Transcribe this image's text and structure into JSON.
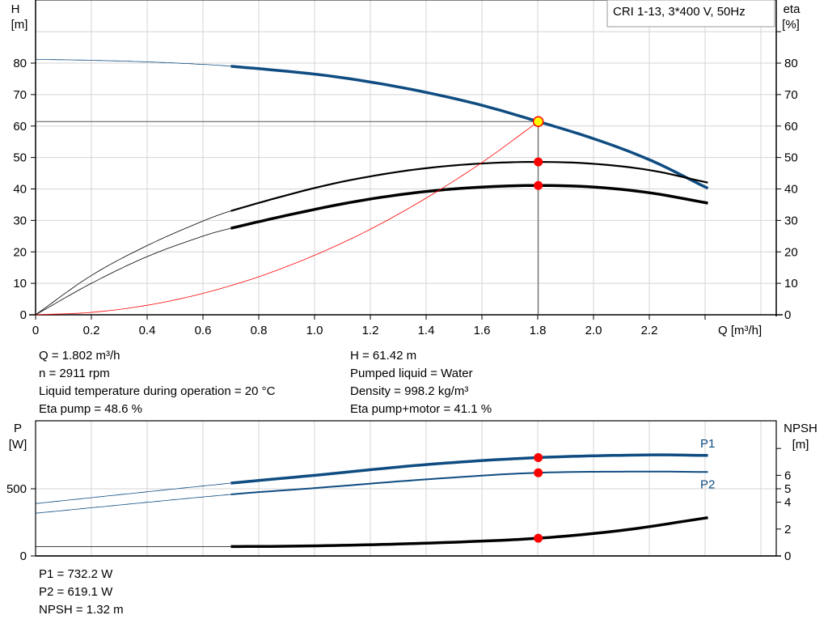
{
  "chart_data": [
    {
      "type": "line",
      "title": "CRI 1-13, 3*400 V, 50Hz",
      "xlabel": "Q [m³/h]",
      "ylabel_left": [
        "H",
        "[m]"
      ],
      "ylabel_right": [
        "eta",
        "[%]"
      ],
      "xlim": [
        0,
        2.6
      ],
      "ylim": [
        0,
        100
      ],
      "x_ticks": [
        "0",
        "0.2",
        "0.4",
        "0.6",
        "0.8",
        "1.0",
        "1.2",
        "1.4",
        "1.6",
        "1.8",
        "2.0",
        "2.2",
        ""
      ],
      "y_ticks": [
        "0",
        "10",
        "20",
        "30",
        "40",
        "50",
        "60",
        "70",
        "80"
      ],
      "grid": true,
      "series": [
        {
          "key": "head",
          "color": "#0f4c81",
          "x": [
            0,
            0.2,
            0.4,
            0.6,
            0.7,
            1.0,
            1.2,
            1.4,
            1.6,
            1.802,
            2.0,
            2.2,
            2.41
          ],
          "y": [
            81.2,
            80.9,
            80.4,
            79.6,
            79.0,
            76.5,
            74.0,
            70.7,
            66.6,
            61.42,
            56.0,
            49.3,
            40.2
          ]
        },
        {
          "key": "eta_pump",
          "color": "#000000",
          "x": [
            0,
            0.2,
            0.4,
            0.6,
            0.7,
            1.0,
            1.2,
            1.4,
            1.6,
            1.802,
            2.0,
            2.2,
            2.41
          ],
          "y": [
            0,
            12.5,
            22,
            29.8,
            33,
            40.3,
            44,
            46.6,
            48.1,
            48.6,
            48.0,
            46.0,
            42.0
          ]
        },
        {
          "key": "eta_pump_motor",
          "color": "#000000",
          "x": [
            0,
            0.2,
            0.4,
            0.6,
            0.7,
            1.0,
            1.2,
            1.4,
            1.6,
            1.802,
            2.0,
            2.2,
            2.41
          ],
          "y": [
            0,
            10,
            18.5,
            25,
            27.5,
            33.5,
            36.8,
            39.2,
            40.6,
            41.1,
            40.6,
            38.8,
            35.5
          ]
        },
        {
          "key": "system",
          "color": "#ff0000",
          "x": [
            0,
            0.2,
            0.4,
            0.6,
            0.8,
            1.0,
            1.2,
            1.4,
            1.6,
            1.802
          ],
          "y": [
            0,
            0.76,
            3.03,
            6.81,
            12.1,
            18.9,
            27.2,
            37.1,
            48.4,
            61.42
          ]
        }
      ],
      "operating_point": {
        "q": 1.802,
        "h": 61.42,
        "eta_pump": 48.6,
        "eta_pump_motor": 41.1
      }
    },
    {
      "type": "line",
      "ylabel_left": [
        "P",
        "[W]"
      ],
      "ylabel_right": [
        "NPSH",
        "[m]"
      ],
      "xlim": [
        0,
        2.6
      ],
      "ylim_left": [
        0,
        1000
      ],
      "ylim_right": [
        0,
        10
      ],
      "y_ticks_left": [
        "0",
        "500"
      ],
      "y_ticks_right": [
        "0",
        "2",
        "4",
        "5",
        "6",
        ""
      ],
      "grid": true,
      "series": [
        {
          "key": "p1",
          "name": "P1",
          "color": "#0f4c81",
          "x": [
            0,
            0.7,
            1.0,
            1.4,
            1.802,
            2.2,
            2.41
          ],
          "y": [
            390,
            542,
            600,
            680,
            732.2,
            752,
            748
          ]
        },
        {
          "key": "p2",
          "name": "P2",
          "color": "#0f4c81",
          "x": [
            0,
            0.7,
            1.0,
            1.4,
            1.802,
            2.2,
            2.41
          ],
          "y": [
            318,
            458,
            505,
            570,
            619.1,
            628,
            625
          ]
        },
        {
          "key": "npsh",
          "color": "#000000",
          "axis": "right",
          "x": [
            0,
            0.7,
            1.0,
            1.4,
            1.802,
            2.1,
            2.41
          ],
          "y": [
            0.7,
            0.7,
            0.75,
            0.95,
            1.32,
            1.9,
            2.85
          ]
        }
      ]
    }
  ],
  "info_top": {
    "q": "Q = 1.802 m³/h",
    "n": "n = 2911 rpm",
    "temp": "Liquid temperature during operation = 20 °C",
    "eta_pump": "Eta pump = 48.6 %",
    "h": "H = 61.42 m",
    "liquid": "Pumped liquid = Water",
    "density": "Density = 998.2 kg/m³",
    "eta_pm": "Eta pump+motor = 41.1 %"
  },
  "info_bottom": {
    "p1": "P1 = 732.2 W",
    "p2": "P2 = 619.1 W",
    "npsh": "NPSH = 1.32 m"
  }
}
